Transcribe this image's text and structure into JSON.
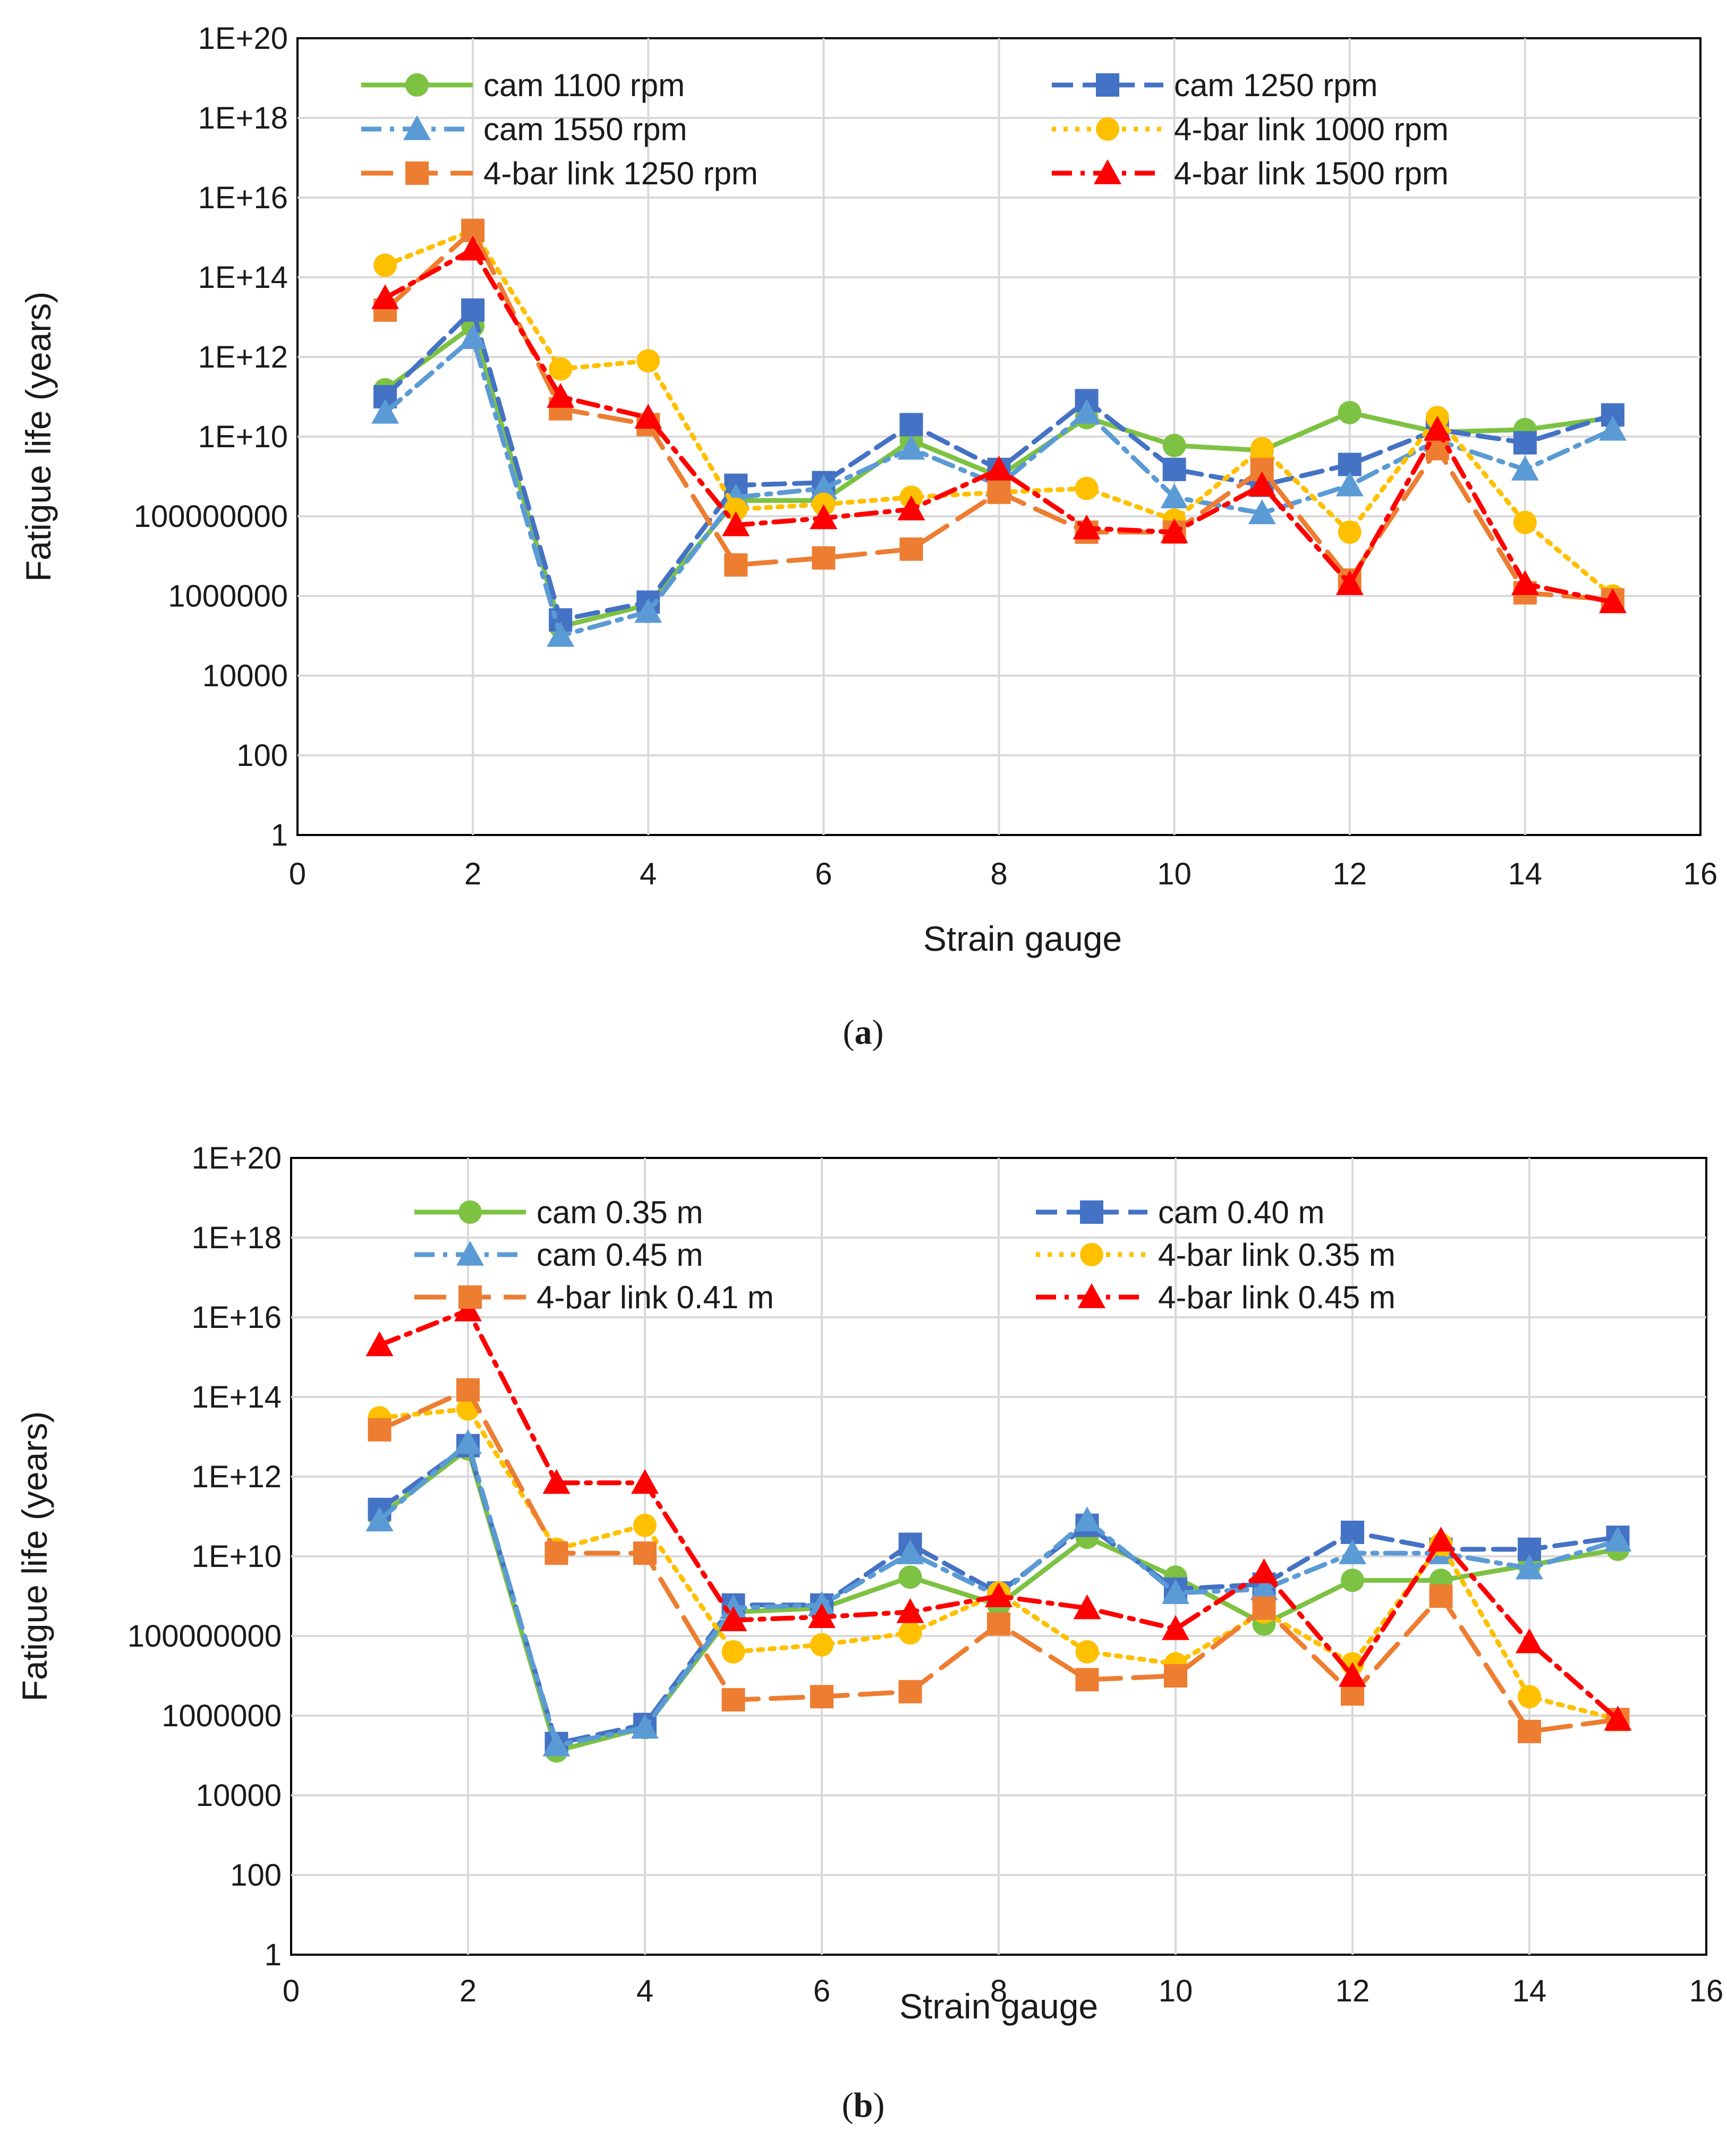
{
  "chart_data": [
    {
      "type": "line",
      "panel": "a",
      "caption_open": "(",
      "caption_letter": "a",
      "caption_close": ")",
      "xlabel": "Strain gauge",
      "ylabel": "Fatigue life (years)",
      "xlim": [
        0,
        16
      ],
      "xticks": [
        "0",
        "2",
        "4",
        "6",
        "8",
        "10",
        "12",
        "14",
        "16"
      ],
      "yscale": "log",
      "ylim": [
        1,
        1e+20
      ],
      "yticks": [
        "1",
        "100",
        "10000",
        "1000000",
        "100000000",
        "1E+10",
        "1E+12",
        "1E+14",
        "1E+16",
        "1E+18",
        "1E+20"
      ],
      "grid": true,
      "legend_position": "top",
      "x": [
        1,
        2,
        3,
        4,
        5,
        6,
        7,
        8,
        9,
        10,
        11,
        12,
        13,
        14,
        15
      ],
      "series": [
        {
          "name": "cam 1100 rpm",
          "color": "#7dc242",
          "dash": "solid",
          "marker": "circle",
          "values": [
            150000000000.0,
            6000000000000.0,
            170000.0,
            600000.0,
            250000000.0,
            250000000.0,
            8000000000.0,
            1000000000.0,
            30000000000.0,
            6000000000.0,
            4500000000.0,
            40000000000.0,
            13000000000.0,
            15000000000.0,
            30000000000.0
          ]
        },
        {
          "name": "cam 1250 rpm",
          "color": "#4472c4",
          "dash": "dashed",
          "marker": "square",
          "values": [
            100000000000.0,
            15000000000000.0,
            250000.0,
            700000.0,
            600000000.0,
            700000000.0,
            20000000000.0,
            1500000000.0,
            80000000000.0,
            1500000000.0,
            600000000.0,
            2000000000.0,
            15000000000.0,
            7000000000.0,
            35000000000.0
          ]
        },
        {
          "name": "cam 1550 rpm",
          "color": "#5b9bd5",
          "dash": "dashdot",
          "marker": "triangle",
          "values": [
            40000000000.0,
            3000000000000.0,
            100000.0,
            400000.0,
            300000000.0,
            500000000.0,
            5000000000.0,
            600000000.0,
            40000000000.0,
            300000000.0,
            120000000.0,
            600000000.0,
            8000000000.0,
            1500000000.0,
            15000000000.0
          ]
        },
        {
          "name": "4-bar link 1000 rpm",
          "color": "#ffc000",
          "dash": "dotted",
          "marker": "circle",
          "values": [
            200000000000000.0,
            1500000000000000.0,
            500000000000.0,
            800000000000.0,
            150000000.0,
            200000000.0,
            300000000.0,
            400000000.0,
            500000000.0,
            80000000.0,
            5000000000.0,
            40000000.0,
            30000000000.0,
            70000000.0,
            1000000.0
          ]
        },
        {
          "name": "4-bar link 1250 rpm",
          "color": "#ed7d31",
          "dash": "longdash",
          "marker": "square",
          "values": [
            15000000000000.0,
            1500000000000000.0,
            50000000000.0,
            20000000000.0,
            6000000.0,
            9000000.0,
            15000000.0,
            400000000.0,
            40000000.0,
            40000000.0,
            1500000000.0,
            2500000.0,
            5000000000.0,
            1200000.0,
            800000.0
          ]
        },
        {
          "name": "4-bar link 1500 rpm",
          "color": "#ff0000",
          "dash": "dashdot",
          "marker": "triangle",
          "values": [
            30000000000000.0,
            500000000000000.0,
            100000000000.0,
            30000000000.0,
            60000000.0,
            90000000.0,
            150000000.0,
            1500000000.0,
            50000000.0,
            40000000.0,
            600000000.0,
            2000000.0,
            15000000000.0,
            2000000.0,
            700000.0
          ]
        }
      ]
    },
    {
      "type": "line",
      "panel": "b",
      "caption_open": "(",
      "caption_letter": "b",
      "caption_close": ")",
      "xlabel": "Strain gauge",
      "ylabel": "Fatigue life (years)",
      "xlim": [
        0,
        16
      ],
      "xticks": [
        "0",
        "2",
        "4",
        "6",
        "8",
        "10",
        "12",
        "14",
        "16"
      ],
      "yscale": "log",
      "ylim": [
        1,
        1e+20
      ],
      "yticks": [
        "1",
        "100",
        "10000",
        "1000000",
        "100000000",
        "1E+10",
        "1E+12",
        "1E+14",
        "1E+16",
        "1E+18",
        "1E+20"
      ],
      "grid": true,
      "legend_position": "top",
      "x": [
        1,
        2,
        3,
        4,
        5,
        6,
        7,
        8,
        9,
        10,
        11,
        12,
        13,
        14,
        15
      ],
      "series": [
        {
          "name": "cam 0.35 m",
          "color": "#7dc242",
          "dash": "solid",
          "marker": "circle",
          "values": [
            100000000000.0,
            5000000000000.0,
            130000.0,
            500000.0,
            400000000.0,
            500000000.0,
            3000000000.0,
            600000000.0,
            30000000000.0,
            3000000000.0,
            200000000.0,
            2500000000.0,
            2500000000.0,
            6000000000.0,
            15000000000.0
          ]
        },
        {
          "name": "cam 0.40 m",
          "color": "#4472c4",
          "dash": "dashed",
          "marker": "square",
          "values": [
            150000000000.0,
            6000000000000.0,
            200000.0,
            600000.0,
            600000000.0,
            600000000.0,
            20000000000.0,
            1200000000.0,
            60000000000.0,
            1500000000.0,
            2000000000.0,
            40000000000.0,
            15000000000.0,
            15000000000.0,
            30000000000.0
          ]
        },
        {
          "name": "cam 0.45 m",
          "color": "#5b9bd5",
          "dash": "dashdot",
          "marker": "triangle",
          "values": [
            80000000000.0,
            7000000000000.0,
            180000.0,
            500000.0,
            500000000.0,
            600000000.0,
            12000000000.0,
            1000000000.0,
            80000000000.0,
            1200000000.0,
            1500000000.0,
            12000000000.0,
            12000000000.0,
            5000000000.0,
            25000000000.0
          ]
        },
        {
          "name": "4-bar link 0.35 m",
          "color": "#ffc000",
          "dash": "dotted",
          "marker": "circle",
          "values": [
            30000000000000.0,
            50000000000000.0,
            15000000000.0,
            60000000000.0,
            40000000.0,
            60000000.0,
            120000000.0,
            1200000000.0,
            40000000.0,
            20000000.0,
            400000000.0,
            20000000.0,
            20000000000.0,
            3000000.0,
            800000.0
          ]
        },
        {
          "name": "4-bar link 0.41 m",
          "color": "#ed7d31",
          "dash": "longdash",
          "marker": "square",
          "values": [
            15000000000000.0,
            150000000000000.0,
            12000000000.0,
            12000000000.0,
            2500000.0,
            3000000.0,
            4000000.0,
            200000000.0,
            8000000.0,
            10000000.0,
            500000000.0,
            3500000.0,
            1000000000.0,
            400000.0,
            800000.0
          ]
        },
        {
          "name": "4-bar link 0.45 m",
          "color": "#ff0000",
          "dash": "dashdot",
          "marker": "triangle",
          "values": [
            2000000000000000.0,
            1.5e+16,
            700000000000.0,
            700000000000.0,
            250000000.0,
            300000000.0,
            400000000.0,
            1000000000.0,
            500000000.0,
            150000000.0,
            4000000000.0,
            10000000.0,
            25000000000.0,
            70000000.0,
            800000.0
          ]
        }
      ]
    }
  ]
}
